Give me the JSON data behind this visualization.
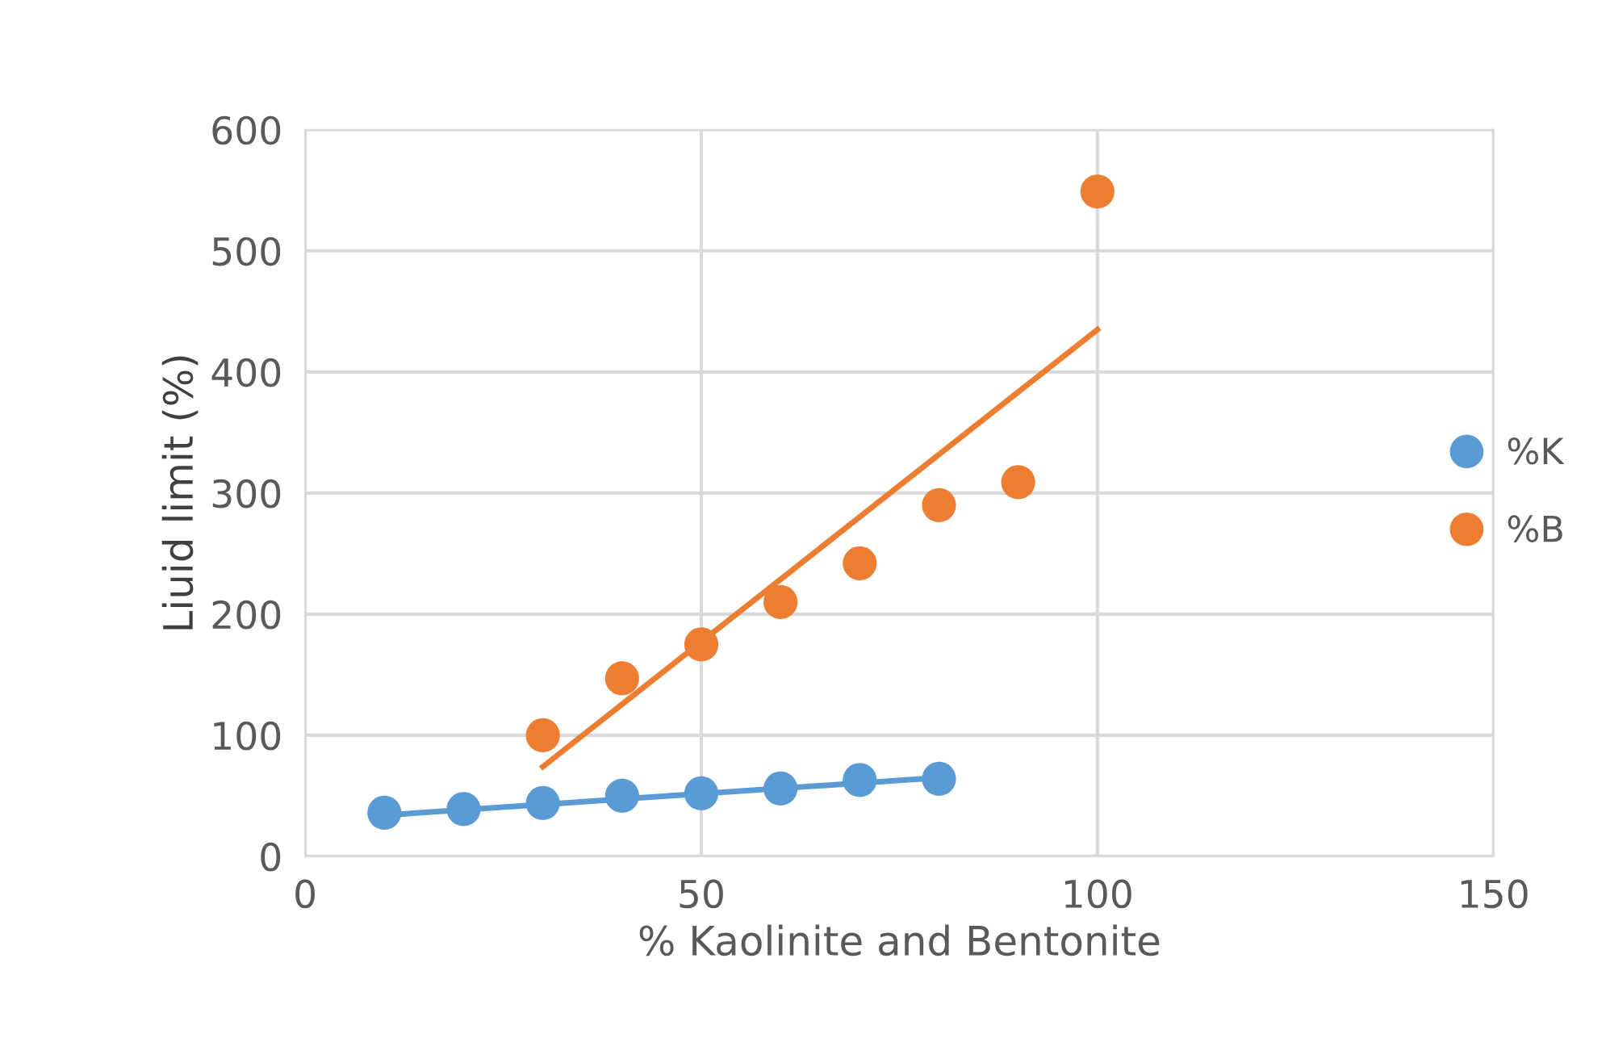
{
  "chart_data": {
    "type": "scatter",
    "xlabel": "% Kaolinite and Bentonite",
    "ylabel": "Liuid limit (%)",
    "xlim": [
      0,
      150
    ],
    "xticks": [
      0,
      50,
      100,
      150
    ],
    "ylim": [
      0,
      600
    ],
    "yticks": [
      0,
      100,
      200,
      300,
      400,
      500,
      600
    ],
    "grid": true,
    "legend": "right",
    "series": [
      {
        "name": "%K",
        "marker": "circle",
        "color": "#5b9bd5",
        "x": [
          10,
          20,
          30,
          40,
          50,
          60,
          70,
          80
        ],
        "values": [
          36,
          39,
          44,
          50,
          52,
          56,
          63,
          64
        ]
      },
      {
        "name": "%B",
        "marker": "circle",
        "color": "#ed7d31",
        "x": [
          30,
          40,
          50,
          60,
          70,
          80,
          90,
          100
        ],
        "values": [
          100,
          147,
          175,
          210,
          242,
          290,
          309,
          549
        ]
      },
      {
        "type": "line",
        "color": "#5b9bd5",
        "x": [
          10,
          80
        ],
        "values": [
          34,
          65
        ]
      },
      {
        "type": "line",
        "color": "#ed7d31",
        "x": [
          30,
          100
        ],
        "values": [
          74,
          435
        ]
      }
    ]
  }
}
